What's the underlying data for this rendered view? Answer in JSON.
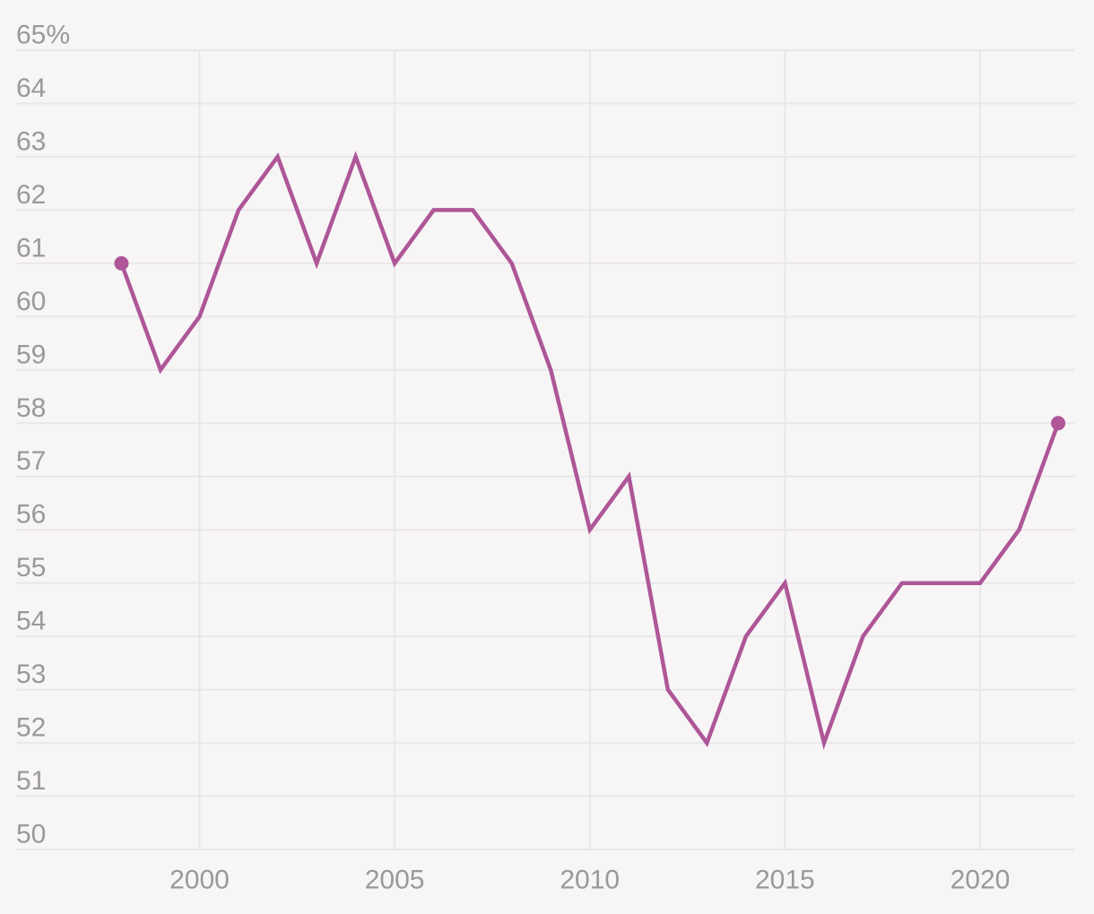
{
  "chart_data": {
    "type": "line",
    "title": "",
    "xlabel": "",
    "ylabel": "",
    "x": [
      1998,
      1999,
      2000,
      2001,
      2002,
      2003,
      2004,
      2005,
      2006,
      2007,
      2008,
      2009,
      2010,
      2011,
      2012,
      2013,
      2014,
      2015,
      2016,
      2017,
      2018,
      2019,
      2020,
      2021,
      2022
    ],
    "series": [
      {
        "name": "percent",
        "values": [
          61,
          59,
          60,
          62,
          63,
          61,
          63,
          61,
          62,
          62,
          61,
          59,
          56,
          57,
          53,
          52,
          54,
          55,
          52,
          54,
          55,
          55,
          55,
          56,
          58
        ]
      }
    ],
    "ylim": [
      50,
      65
    ],
    "xlim": [
      1998,
      2022
    ],
    "grid": "both",
    "legend_position": "none",
    "y_ticks": [
      {
        "v": 65,
        "label": "65%"
      },
      {
        "v": 64,
        "label": "64"
      },
      {
        "v": 63,
        "label": "63"
      },
      {
        "v": 62,
        "label": "62"
      },
      {
        "v": 61,
        "label": "61"
      },
      {
        "v": 60,
        "label": "60"
      },
      {
        "v": 59,
        "label": "59"
      },
      {
        "v": 58,
        "label": "58"
      },
      {
        "v": 57,
        "label": "57"
      },
      {
        "v": 56,
        "label": "56"
      },
      {
        "v": 55,
        "label": "55"
      },
      {
        "v": 54,
        "label": "54"
      },
      {
        "v": 53,
        "label": "53"
      },
      {
        "v": 52,
        "label": "52"
      },
      {
        "v": 51,
        "label": "51"
      },
      {
        "v": 50,
        "label": "50"
      }
    ],
    "x_ticks": [
      {
        "v": 2000,
        "label": "2000"
      },
      {
        "v": 2005,
        "label": "2005"
      },
      {
        "v": 2010,
        "label": "2010"
      },
      {
        "v": 2015,
        "label": "2015"
      },
      {
        "v": 2020,
        "label": "2020"
      }
    ],
    "endpoint_dots": [
      1998,
      2022
    ],
    "colors": {
      "line": "#ae5697",
      "endpoint_dot": "#ae5697",
      "background": "#f7f5f6",
      "gridline": "#eae7ea",
      "tick_label": "#9b989a"
    }
  }
}
